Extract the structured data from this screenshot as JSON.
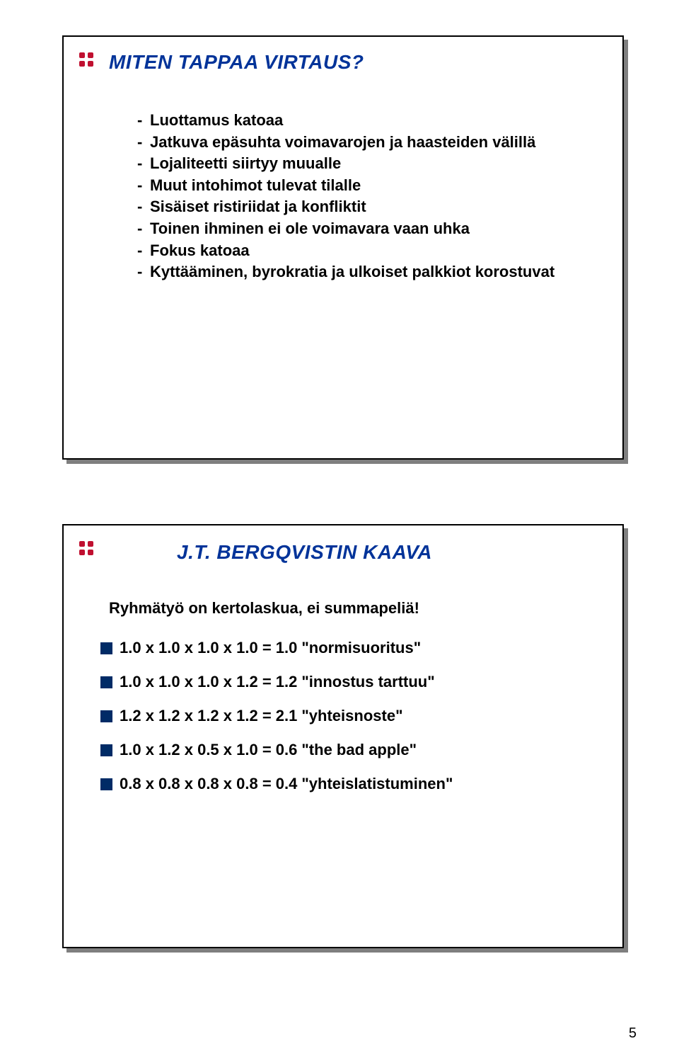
{
  "colors": {
    "title": "#003399",
    "text": "#000000",
    "icon_dot": "#c01030",
    "square": "#002b66",
    "border": "#000000",
    "background": "#ffffff"
  },
  "slide1": {
    "title": "MITEN TAPPAA VIRTAUS?",
    "bullets": [
      "Luottamus katoaa",
      "Jatkuva epäsuhta voimavarojen ja haasteiden välillä",
      "Lojaliteetti siirtyy muualle",
      "Muut intohimot tulevat tilalle",
      "Sisäiset ristiriidat ja konfliktit",
      "Toinen ihminen ei ole voimavara vaan uhka",
      "Fokus katoaa",
      "Kyttääminen, byrokratia ja ulkoiset palkkiot korostuvat"
    ]
  },
  "slide2": {
    "title": "J.T. BERGQVISTIN KAAVA",
    "subtitle": "Ryhmätyö on kertolaskua, ei summapeliä!",
    "rows": [
      {
        "eq": "1.0 x 1.0 x 1.0 x 1.0 = 1.0",
        "label": "\"normisuoritus\""
      },
      {
        "eq": "1.0 x 1.0 x 1.0 x 1.2 = 1.2",
        "label": "\"innostus tarttuu\""
      },
      {
        "eq": "1.2 x 1.2 x 1.2 x 1.2 = 2.1",
        "label": "\"yhteisnoste\""
      },
      {
        "eq": "1.0 x 1.2 x 0.5 x 1.0 = 0.6",
        "label": "\"the bad apple\""
      },
      {
        "eq": "0.8 x 0.8 x 0.8 x 0.8 = 0.4",
        "label": "\"yhteislatistuminen\""
      }
    ]
  },
  "page_number": "5"
}
